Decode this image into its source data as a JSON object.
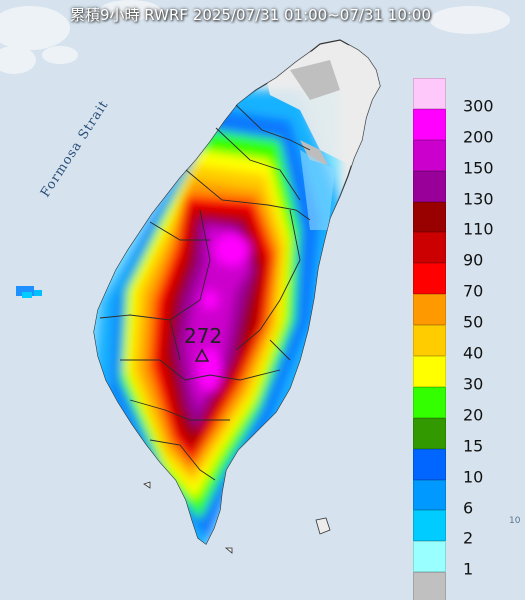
{
  "title": "累積9小時 RWRF 2025/07/31 01:00~07/31 10:00",
  "max_label": "272",
  "sea_label": "Formosa Strait",
  "edge_label": "10",
  "legend": [
    {
      "label": "300",
      "color": "#ffc8fa"
    },
    {
      "label": "200",
      "color": "#ff00ff"
    },
    {
      "label": "150",
      "color": "#cc00cc"
    },
    {
      "label": "130",
      "color": "#990099"
    },
    {
      "label": "110",
      "color": "#990000"
    },
    {
      "label": "90",
      "color": "#cc0000"
    },
    {
      "label": "70",
      "color": "#ff0000"
    },
    {
      "label": "50",
      "color": "#ff9900"
    },
    {
      "label": "40",
      "color": "#ffcc00"
    },
    {
      "label": "30",
      "color": "#ffff00"
    },
    {
      "label": "20",
      "color": "#33ff00"
    },
    {
      "label": "15",
      "color": "#339900"
    },
    {
      "label": "10",
      "color": "#0066ff"
    },
    {
      "label": "6",
      "color": "#0099ff"
    },
    {
      "label": "2",
      "color": "#00ccff"
    },
    {
      "label": "1",
      "color": "#99ffff"
    },
    {
      "label": "",
      "color": "#c0c0c0"
    }
  ],
  "colors": {
    "sea": "#dbe6ef",
    "land": "#ececec",
    "border": "#333333"
  }
}
